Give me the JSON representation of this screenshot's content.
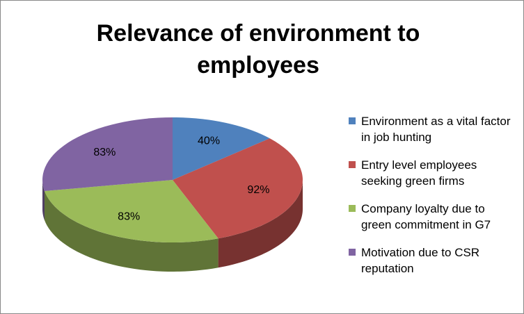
{
  "chart_data": {
    "type": "pie",
    "title": "Relevance of environment  to employees",
    "categories": [
      "Environment as a vital factor in job hunting",
      "Entry level employees seeking green firms",
      "Company loyalty due to green commitment in G7",
      "Motivation due to CSR reputation"
    ],
    "values": [
      40,
      92,
      83,
      83
    ],
    "value_labels": [
      "40%",
      "92%",
      "83%",
      "83%"
    ],
    "colors": [
      "#4f81bd",
      "#c0504d",
      "#9bbb59",
      "#8064a2"
    ],
    "legend": "right"
  }
}
